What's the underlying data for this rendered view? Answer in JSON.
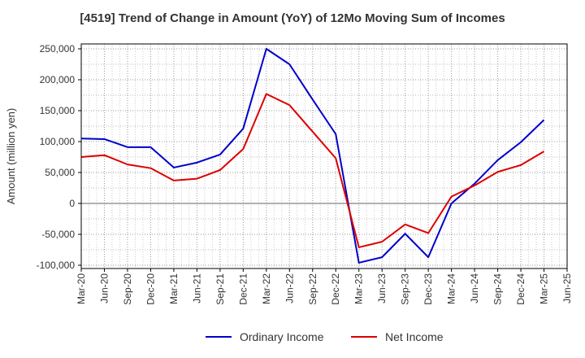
{
  "chart_data": {
    "type": "line",
    "title": "[4519]  Trend of Change in Amount (YoY) of 12Mo Moving Sum of Incomes",
    "xlabel": "",
    "ylabel": "Amount (million yen)",
    "ylim": [
      -100000,
      250000
    ],
    "yticks": [
      -100000,
      -50000,
      0,
      50000,
      100000,
      150000,
      200000,
      250000
    ],
    "ytick_labels": [
      "-100,000",
      "-50,000",
      "0",
      "50,000",
      "100,000",
      "150,000",
      "200,000",
      "250,000"
    ],
    "categories": [
      "Mar-20",
      "Jun-20",
      "Sep-20",
      "Dec-20",
      "Mar-21",
      "Jun-21",
      "Sep-21",
      "Dec-21",
      "Mar-22",
      "Jun-22",
      "Sep-22",
      "Dec-22",
      "Mar-23",
      "Jun-23",
      "Sep-23",
      "Dec-23",
      "Mar-24",
      "Jun-24",
      "Sep-24",
      "Dec-24",
      "Mar-25",
      "Jun-25"
    ],
    "grid": true,
    "legend_position": "bottom-center",
    "series": [
      {
        "name": "Ordinary Income",
        "color": "#0000cc",
        "values": [
          105000,
          104000,
          91000,
          91000,
          58000,
          66000,
          79000,
          121000,
          250000,
          225000,
          168000,
          112000,
          -96000,
          -87000,
          -49000,
          -87000,
          0,
          32000,
          70000,
          99000,
          135000,
          null
        ]
      },
      {
        "name": "Net Income",
        "color": "#dd0000",
        "values": [
          75000,
          78000,
          63000,
          57000,
          37000,
          40000,
          54000,
          88000,
          177000,
          159000,
          116000,
          73000,
          -71000,
          -62000,
          -34000,
          -48000,
          11000,
          29000,
          51000,
          62000,
          84000,
          null
        ]
      }
    ]
  }
}
